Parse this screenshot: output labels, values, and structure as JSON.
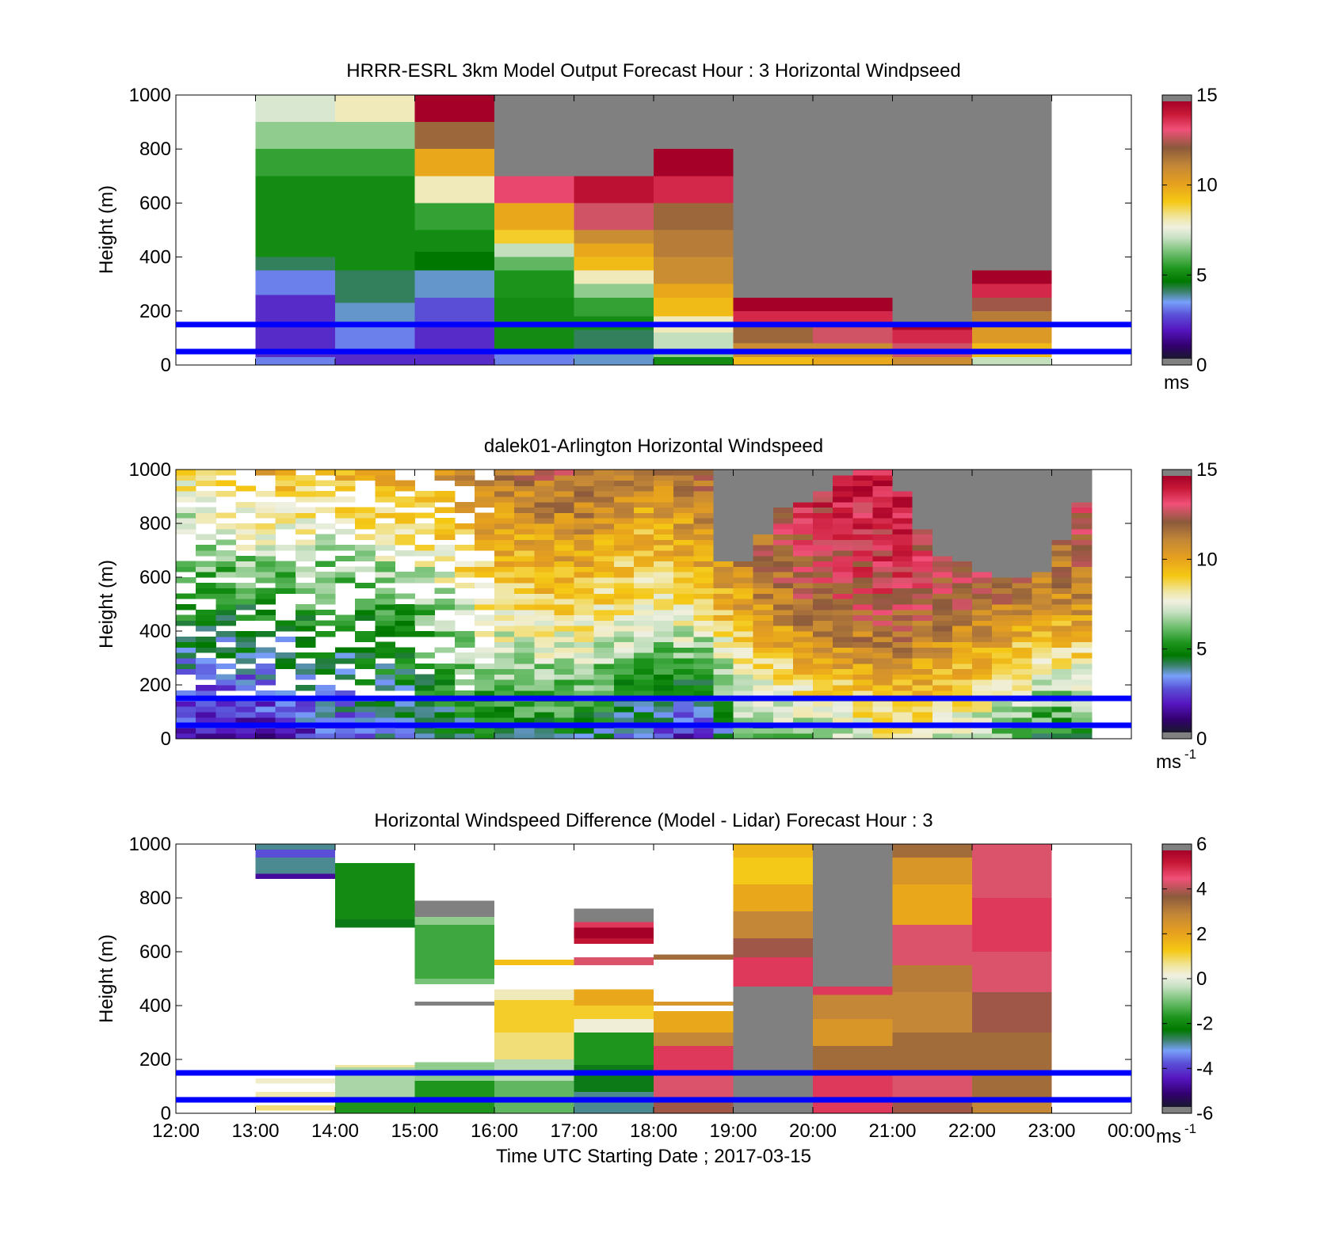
{
  "chart_data": [
    {
      "type": "heatmap",
      "title": "HRRR-ESRL 3km Model Output   Forecast Hour : 3 Horizontal Windpseed",
      "ylabel": "Height (m)",
      "xlabel": "",
      "xlim": [
        0,
        12
      ],
      "ylim": [
        0,
        1000
      ],
      "x_tick_positions_hours": [
        0,
        1,
        2,
        3,
        4,
        5,
        6,
        7,
        8,
        9,
        10,
        11,
        12
      ],
      "x_tick_labels": [],
      "y_ticks": [
        0,
        200,
        400,
        600,
        800,
        1000
      ],
      "colorbar": {
        "range": [
          0,
          15
        ],
        "ticks": [
          0,
          5,
          10,
          15
        ],
        "unit": "ms",
        "unit_sup": ""
      },
      "reference_lines_m": [
        50,
        150
      ],
      "grid": false,
      "cells": [
        [
          1,
          0,
          30,
          3
        ],
        [
          1,
          30,
          60,
          2
        ],
        [
          1,
          60,
          100,
          2
        ],
        [
          1,
          100,
          160,
          2
        ],
        [
          1,
          160,
          260,
          2
        ],
        [
          1,
          260,
          310,
          3
        ],
        [
          1,
          310,
          350,
          3
        ],
        [
          1,
          350,
          400,
          4
        ],
        [
          1,
          400,
          450,
          5
        ],
        [
          1,
          450,
          500,
          5
        ],
        [
          1,
          500,
          600,
          5
        ],
        [
          1,
          600,
          700,
          5
        ],
        [
          1,
          700,
          800,
          5.5
        ],
        [
          1,
          800,
          900,
          6.5
        ],
        [
          1,
          900,
          1000,
          7.3
        ],
        [
          2,
          0,
          50,
          2
        ],
        [
          2,
          50,
          140,
          3
        ],
        [
          2,
          140,
          230,
          3.5
        ],
        [
          2,
          230,
          350,
          4
        ],
        [
          2,
          350,
          450,
          5
        ],
        [
          2,
          450,
          500,
          5
        ],
        [
          2,
          500,
          600,
          5
        ],
        [
          2,
          600,
          700,
          5
        ],
        [
          2,
          700,
          800,
          5.5
        ],
        [
          2,
          800,
          900,
          6.5
        ],
        [
          2,
          900,
          1000,
          8
        ],
        [
          3,
          0,
          50,
          2
        ],
        [
          3,
          50,
          140,
          2
        ],
        [
          3,
          140,
          250,
          2.5
        ],
        [
          3,
          250,
          350,
          3.5
        ],
        [
          3,
          350,
          420,
          4.5
        ],
        [
          3,
          420,
          500,
          5
        ],
        [
          3,
          500,
          600,
          5.5
        ],
        [
          3,
          600,
          700,
          8
        ],
        [
          3,
          700,
          800,
          10
        ],
        [
          3,
          800,
          900,
          12
        ],
        [
          3,
          900,
          1000,
          15
        ],
        [
          4,
          0,
          50,
          3
        ],
        [
          4,
          50,
          130,
          5
        ],
        [
          4,
          130,
          250,
          5
        ],
        [
          4,
          250,
          350,
          5.2
        ],
        [
          4,
          350,
          400,
          6
        ],
        [
          4,
          400,
          450,
          7
        ],
        [
          4,
          450,
          500,
          9
        ],
        [
          4,
          500,
          600,
          10
        ],
        [
          4,
          600,
          700,
          13.5
        ],
        [
          4,
          700,
          1000,
          -1
        ],
        [
          5,
          0,
          50,
          3.5
        ],
        [
          5,
          50,
          130,
          4
        ],
        [
          5,
          130,
          180,
          5
        ],
        [
          5,
          180,
          250,
          5.5
        ],
        [
          5,
          250,
          300,
          6.5
        ],
        [
          5,
          300,
          350,
          8
        ],
        [
          5,
          350,
          400,
          9.5
        ],
        [
          5,
          400,
          450,
          10
        ],
        [
          5,
          450,
          500,
          11
        ],
        [
          5,
          500,
          600,
          13
        ],
        [
          5,
          600,
          700,
          14.5
        ],
        [
          5,
          700,
          1000,
          -1
        ],
        [
          6,
          0,
          30,
          5
        ],
        [
          6,
          30,
          60,
          6.5
        ],
        [
          6,
          60,
          120,
          7
        ],
        [
          6,
          120,
          180,
          8
        ],
        [
          6,
          180,
          250,
          9.5
        ],
        [
          6,
          250,
          300,
          10
        ],
        [
          6,
          300,
          400,
          11
        ],
        [
          6,
          400,
          500,
          11.5
        ],
        [
          6,
          500,
          600,
          12
        ],
        [
          6,
          600,
          700,
          14
        ],
        [
          6,
          700,
          800,
          15
        ],
        [
          6,
          800,
          1000,
          -1
        ],
        [
          7,
          0,
          30,
          9.5
        ],
        [
          7,
          30,
          80,
          11
        ],
        [
          7,
          80,
          150,
          12
        ],
        [
          7,
          150,
          200,
          14
        ],
        [
          7,
          200,
          250,
          15
        ],
        [
          7,
          250,
          1000,
          -1
        ],
        [
          8,
          0,
          30,
          10
        ],
        [
          8,
          30,
          80,
          11
        ],
        [
          8,
          80,
          150,
          13
        ],
        [
          8,
          150,
          200,
          14
        ],
        [
          8,
          200,
          250,
          15
        ],
        [
          8,
          250,
          1000,
          -1
        ],
        [
          9,
          0,
          30,
          11
        ],
        [
          9,
          30,
          80,
          13
        ],
        [
          9,
          80,
          130,
          14
        ],
        [
          9,
          130,
          160,
          15
        ],
        [
          9,
          160,
          1000,
          -1
        ],
        [
          10,
          0,
          30,
          7
        ],
        [
          10,
          30,
          80,
          9.5
        ],
        [
          10,
          80,
          150,
          10.5
        ],
        [
          10,
          150,
          200,
          11.5
        ],
        [
          10,
          200,
          250,
          12.5
        ],
        [
          10,
          250,
          300,
          14
        ],
        [
          10,
          300,
          350,
          15
        ],
        [
          10,
          350,
          1000,
          -1
        ]
      ]
    },
    {
      "type": "heatmap",
      "title": "dalek01-Arlington  Horizontal Windspeed",
      "ylabel": "Height (m)",
      "xlabel": "",
      "xlim": [
        0,
        12
      ],
      "ylim": [
        0,
        1000
      ],
      "x_tick_positions_hours": [
        0,
        1,
        2,
        3,
        4,
        5,
        6,
        7,
        8,
        9,
        10,
        11,
        12
      ],
      "x_tick_labels": [],
      "y_ticks": [
        0,
        200,
        400,
        600,
        800,
        1000
      ],
      "colorbar": {
        "range": [
          0,
          15
        ],
        "ticks": [
          0,
          5,
          10,
          15
        ],
        "unit": "ms",
        "unit_sup": "-1"
      },
      "reference_lines_m": [
        50,
        150
      ],
      "grid": false,
      "field": {
        "x_start_hours": 0,
        "x_end_hours": 11.5,
        "column_width_hours": 0.25,
        "height_bin_m": 20,
        "nan_value": null,
        "gray_value": -1,
        "gray_from_hour": 6.7,
        "gray_top_profile_m": [
          [
            6.7,
            650
          ],
          [
            7.2,
            640
          ],
          [
            7.5,
            830
          ],
          [
            8,
            880
          ],
          [
            8.5,
            1000
          ],
          [
            9,
            1000
          ],
          [
            9.3,
            800
          ],
          [
            9.6,
            680
          ],
          [
            10,
            630
          ],
          [
            10.5,
            590
          ],
          [
            11,
            620
          ],
          [
            11.3,
            870
          ],
          [
            11.5,
            870
          ]
        ],
        "surface_profile": [
          [
            0,
            1.5
          ],
          [
            1,
            1.5
          ],
          [
            2,
            2.5
          ],
          [
            3,
            3.5
          ],
          [
            4,
            4.5
          ],
          [
            5,
            4.5
          ],
          [
            6,
            3
          ],
          [
            6.7,
            1.5
          ],
          [
            7,
            5.5
          ],
          [
            8,
            6.5
          ],
          [
            9,
            8
          ],
          [
            10,
            7
          ],
          [
            11,
            4.5
          ],
          [
            11.5,
            5
          ]
        ],
        "mid_profile": [
          [
            0,
            5
          ],
          [
            1,
            5
          ],
          [
            2,
            5.5
          ],
          [
            3,
            6
          ],
          [
            4,
            8.5
          ],
          [
            5,
            9
          ],
          [
            6,
            8
          ],
          [
            7,
            10
          ],
          [
            8,
            12.5
          ],
          [
            9,
            13
          ],
          [
            10,
            12
          ],
          [
            11,
            11
          ],
          [
            11.5,
            11
          ]
        ],
        "top_profile": [
          [
            0,
            8.5
          ],
          [
            1,
            10
          ],
          [
            2,
            9.5
          ],
          [
            3,
            10.5
          ],
          [
            4,
            11.5
          ],
          [
            5,
            12.5
          ],
          [
            6,
            11
          ],
          [
            7,
            13
          ],
          [
            8,
            14
          ],
          [
            9,
            14.5
          ],
          [
            10,
            14
          ],
          [
            11,
            13.5
          ],
          [
            11.5,
            13.5
          ]
        ],
        "gap_fraction_before_hour": 4,
        "gap_fraction": 0.35
      }
    },
    {
      "type": "heatmap",
      "title": "Horizontal Windspeed Difference (Model - Lidar) Forecast Hour : 3",
      "ylabel": "Height (m)",
      "xlabel": "Time UTC  Starting Date ; 2017-03-15",
      "xlim": [
        0,
        12
      ],
      "ylim": [
        0,
        1000
      ],
      "x_tick_positions_hours": [
        0,
        1,
        2,
        3,
        4,
        5,
        6,
        7,
        8,
        9,
        10,
        11,
        12
      ],
      "x_tick_labels": [
        "12:00",
        "13:00",
        "14:00",
        "15:00",
        "16:00",
        "17:00",
        "18:00",
        "19:00",
        "20:00",
        "21:00",
        "22:00",
        "23:00",
        "00:00"
      ],
      "y_ticks": [
        0,
        200,
        400,
        600,
        800,
        1000
      ],
      "colorbar": {
        "range": [
          -6,
          6
        ],
        "ticks": [
          -6,
          -4,
          -2,
          0,
          2,
          4,
          6
        ],
        "unit": "ms",
        "unit_sup": "-1"
      },
      "reference_lines_m": [
        50,
        150
      ],
      "grid": false,
      "cells": [
        [
          1,
          870,
          890,
          -5
        ],
        [
          1,
          890,
          950,
          -3
        ],
        [
          1,
          950,
          980,
          -4
        ],
        [
          1,
          980,
          1000,
          -3
        ],
        [
          1,
          10,
          30,
          0.8
        ],
        [
          1,
          50,
          80,
          0.5
        ],
        [
          1,
          110,
          130,
          0.3
        ],
        [
          2,
          690,
          720,
          -2.5
        ],
        [
          2,
          720,
          930,
          -2
        ],
        [
          2,
          0,
          60,
          -1.8
        ],
        [
          2,
          60,
          170,
          -0.6
        ],
        [
          2,
          170,
          180,
          0.6
        ],
        [
          3,
          480,
          500,
          -1
        ],
        [
          3,
          500,
          700,
          -1.5
        ],
        [
          3,
          700,
          730,
          -0.8
        ],
        [
          3,
          730,
          790,
          -6.1
        ],
        [
          3,
          400,
          415,
          -6.1
        ],
        [
          3,
          0,
          120,
          -1.8
        ],
        [
          3,
          120,
          190,
          -0.8
        ],
        [
          4,
          550,
          570,
          1.5
        ],
        [
          4,
          0,
          120,
          -1.2
        ],
        [
          4,
          120,
          200,
          -0.5
        ],
        [
          4,
          200,
          300,
          0.8
        ],
        [
          4,
          300,
          420,
          1.2
        ],
        [
          4,
          420,
          460,
          0.4
        ],
        [
          5,
          0,
          80,
          -3
        ],
        [
          5,
          80,
          180,
          -2.5
        ],
        [
          5,
          180,
          300,
          -1.8
        ],
        [
          5,
          300,
          350,
          0.2
        ],
        [
          5,
          350,
          400,
          1.2
        ],
        [
          5,
          400,
          460,
          2
        ],
        [
          5,
          550,
          580,
          4.5
        ],
        [
          5,
          630,
          650,
          5.5
        ],
        [
          5,
          650,
          690,
          6
        ],
        [
          5,
          690,
          710,
          5
        ],
        [
          5,
          710,
          760,
          -6.1
        ],
        [
          6,
          0,
          40,
          4
        ],
        [
          6,
          40,
          150,
          4.5
        ],
        [
          6,
          150,
          250,
          5
        ],
        [
          6,
          250,
          300,
          3
        ],
        [
          6,
          300,
          380,
          2
        ],
        [
          6,
          400,
          415,
          2.5
        ],
        [
          6,
          570,
          590,
          3.5
        ],
        [
          7,
          0,
          470,
          -6.1
        ],
        [
          7,
          470,
          580,
          5
        ],
        [
          7,
          580,
          650,
          4
        ],
        [
          7,
          650,
          750,
          3
        ],
        [
          7,
          750,
          850,
          2
        ],
        [
          7,
          850,
          950,
          1.3
        ],
        [
          7,
          950,
          1000,
          1.7
        ],
        [
          8,
          0,
          50,
          5
        ],
        [
          8,
          50,
          150,
          5
        ],
        [
          8,
          150,
          250,
          3.5
        ],
        [
          8,
          250,
          350,
          2.5
        ],
        [
          8,
          350,
          440,
          3
        ],
        [
          8,
          440,
          470,
          5
        ],
        [
          8,
          470,
          1000,
          -6.1
        ],
        [
          9,
          0,
          50,
          4
        ],
        [
          9,
          50,
          150,
          4.5
        ],
        [
          9,
          150,
          300,
          3.5
        ],
        [
          9,
          300,
          450,
          3
        ],
        [
          9,
          450,
          550,
          3.2
        ],
        [
          9,
          550,
          700,
          4.5
        ],
        [
          9,
          700,
          850,
          2
        ],
        [
          9,
          850,
          950,
          2.5
        ],
        [
          9,
          950,
          1000,
          3.5
        ],
        [
          10,
          0,
          50,
          3
        ],
        [
          10,
          50,
          150,
          3.5
        ],
        [
          10,
          150,
          300,
          3.5
        ],
        [
          10,
          300,
          450,
          4
        ],
        [
          10,
          450,
          600,
          4.5
        ],
        [
          10,
          600,
          800,
          5
        ],
        [
          10,
          800,
          1000,
          4.5
        ]
      ]
    }
  ]
}
